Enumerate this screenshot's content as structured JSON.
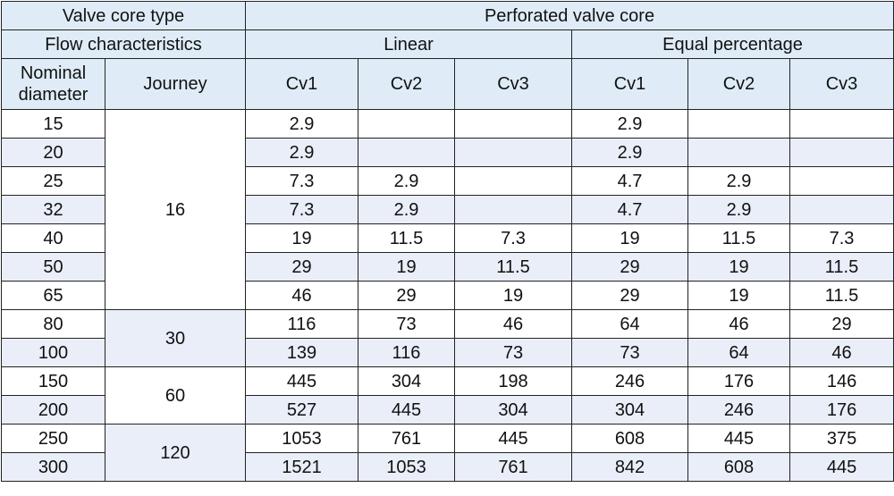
{
  "header": {
    "valve_core_type_label": "Valve core type",
    "perforated_label": "Perforated valve core",
    "flow_char_label": "Flow characteristics",
    "linear_label": "Linear",
    "equal_pct_label": "Equal percentage",
    "nominal_diameter_label": "Nominal diameter",
    "journey_label": "Journey",
    "cv_labels": [
      "Cv1",
      "Cv2",
      "Cv3",
      "Cv1",
      "Cv2",
      "Cv3"
    ]
  },
  "rows": [
    {
      "dn": "15",
      "cells": [
        "2.9",
        "",
        "",
        "2.9",
        "",
        ""
      ]
    },
    {
      "dn": "20",
      "cells": [
        "2.9",
        "",
        "",
        "2.9",
        "",
        ""
      ]
    },
    {
      "dn": "25",
      "cells": [
        "7.3",
        "2.9",
        "",
        "4.7",
        "2.9",
        ""
      ]
    },
    {
      "dn": "32",
      "cells": [
        "7.3",
        "2.9",
        "",
        "4.7",
        "2.9",
        ""
      ]
    },
    {
      "dn": "40",
      "cells": [
        "19",
        "11.5",
        "7.3",
        "19",
        "11.5",
        "7.3"
      ]
    },
    {
      "dn": "50",
      "cells": [
        "29",
        "19",
        "11.5",
        "29",
        "19",
        "11.5"
      ]
    },
    {
      "dn": "65",
      "cells": [
        "46",
        "29",
        "19",
        "29",
        "19",
        "11.5"
      ]
    },
    {
      "dn": "80",
      "cells": [
        "116",
        "73",
        "46",
        "64",
        "46",
        "29"
      ]
    },
    {
      "dn": "100",
      "cells": [
        "139",
        "116",
        "73",
        "73",
        "64",
        "46"
      ]
    },
    {
      "dn": "150",
      "cells": [
        "445",
        "304",
        "198",
        "246",
        "176",
        "146"
      ]
    },
    {
      "dn": "200",
      "cells": [
        "527",
        "445",
        "304",
        "304",
        "246",
        "176"
      ]
    },
    {
      "dn": "250",
      "cells": [
        "1053",
        "761",
        "445",
        "608",
        "445",
        "375"
      ]
    },
    {
      "dn": "300",
      "cells": [
        "1521",
        "1053",
        "761",
        "842",
        "608",
        "445"
      ]
    }
  ],
  "journey_groups": [
    "16",
    "30",
    "60",
    "120"
  ]
}
